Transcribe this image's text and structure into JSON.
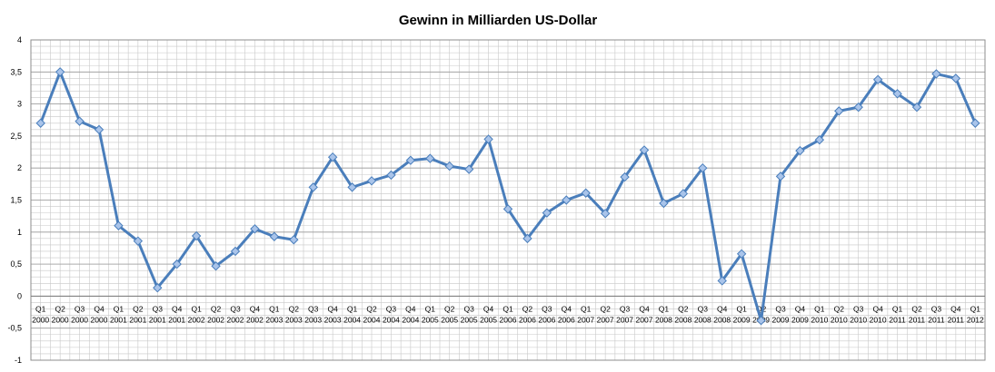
{
  "chart_data": {
    "type": "line",
    "title": "Gewinn in Milliarden US-Dollar",
    "xlabel": "",
    "ylabel": "",
    "ylim": [
      -1,
      4
    ],
    "yticks": [
      "4",
      "3,5",
      "3",
      "2,5",
      "2",
      "1,5",
      "1",
      "0,5",
      "0",
      "-0,5",
      "-1"
    ],
    "grid": true,
    "legend": "none",
    "categories": [
      {
        "q": "Q1",
        "y": "2000"
      },
      {
        "q": "Q2",
        "y": "2000"
      },
      {
        "q": "Q3",
        "y": "2000"
      },
      {
        "q": "Q4",
        "y": "2000"
      },
      {
        "q": "Q1",
        "y": "2001"
      },
      {
        "q": "Q2",
        "y": "2001"
      },
      {
        "q": "Q3",
        "y": "2001"
      },
      {
        "q": "Q4",
        "y": "2001"
      },
      {
        "q": "Q1",
        "y": "2002"
      },
      {
        "q": "Q2",
        "y": "2002"
      },
      {
        "q": "Q3",
        "y": "2002"
      },
      {
        "q": "Q4",
        "y": "2002"
      },
      {
        "q": "Q1",
        "y": "2003"
      },
      {
        "q": "Q2",
        "y": "2003"
      },
      {
        "q": "Q3",
        "y": "2003"
      },
      {
        "q": "Q4",
        "y": "2003"
      },
      {
        "q": "Q1",
        "y": "2004"
      },
      {
        "q": "Q2",
        "y": "2004"
      },
      {
        "q": "Q3",
        "y": "2004"
      },
      {
        "q": "Q4",
        "y": "2004"
      },
      {
        "q": "Q1",
        "y": "2005"
      },
      {
        "q": "Q2",
        "y": "2005"
      },
      {
        "q": "Q3",
        "y": "2005"
      },
      {
        "q": "Q4",
        "y": "2005"
      },
      {
        "q": "Q1",
        "y": "2006"
      },
      {
        "q": "Q2",
        "y": "2006"
      },
      {
        "q": "Q3",
        "y": "2006"
      },
      {
        "q": "Q4",
        "y": "2006"
      },
      {
        "q": "Q1",
        "y": "2007"
      },
      {
        "q": "Q2",
        "y": "2007"
      },
      {
        "q": "Q3",
        "y": "2007"
      },
      {
        "q": "Q4",
        "y": "2007"
      },
      {
        "q": "Q1",
        "y": "2008"
      },
      {
        "q": "Q2",
        "y": "2008"
      },
      {
        "q": "Q3",
        "y": "2008"
      },
      {
        "q": "Q4",
        "y": "2008"
      },
      {
        "q": "Q1",
        "y": "2009"
      },
      {
        "q": "Q2",
        "y": "2009"
      },
      {
        "q": "Q3",
        "y": "2009"
      },
      {
        "q": "Q4",
        "y": "2009"
      },
      {
        "q": "Q1",
        "y": "2010"
      },
      {
        "q": "Q2",
        "y": "2010"
      },
      {
        "q": "Q3",
        "y": "2010"
      },
      {
        "q": "Q4",
        "y": "2010"
      },
      {
        "q": "Q1",
        "y": "2011"
      },
      {
        "q": "Q2",
        "y": "2011"
      },
      {
        "q": "Q3",
        "y": "2011"
      },
      {
        "q": "Q4",
        "y": "2011"
      },
      {
        "q": "Q1",
        "y": "2012"
      }
    ],
    "series": [
      {
        "color": "#4a7ebb",
        "marker_color": "#a9c4ea",
        "values": [
          2.7,
          3.5,
          2.73,
          2.6,
          1.1,
          0.86,
          0.13,
          0.5,
          0.94,
          0.47,
          0.7,
          1.05,
          0.93,
          0.88,
          1.7,
          2.17,
          1.7,
          1.8,
          1.89,
          2.12,
          2.15,
          2.03,
          1.98,
          2.45,
          1.36,
          0.9,
          1.3,
          1.5,
          1.61,
          1.29,
          1.86,
          2.28,
          1.45,
          1.6,
          2.0,
          0.24,
          0.66,
          -0.38,
          1.87,
          2.27,
          2.44,
          2.89,
          2.95,
          3.38,
          3.16,
          2.95,
          3.47,
          3.4,
          2.7
        ]
      }
    ]
  }
}
